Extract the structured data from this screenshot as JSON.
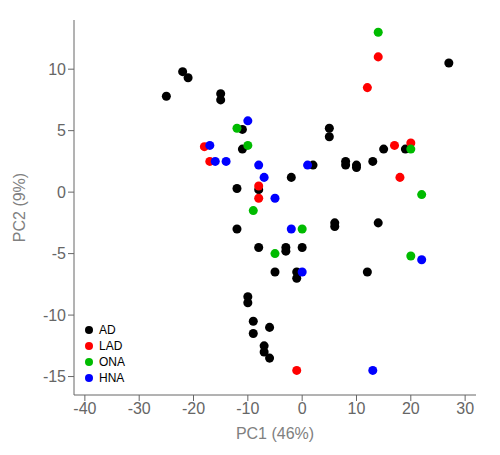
{
  "chart_data": {
    "type": "scatter",
    "xlabel": "PC1 (46%)",
    "ylabel": "PC2 (9%)",
    "xlim": [
      -42,
      32
    ],
    "ylim": [
      -16.5,
      14
    ],
    "xticks": [
      -40,
      -30,
      -20,
      -10,
      0,
      10,
      20,
      30
    ],
    "yticks": [
      -15,
      -10,
      -5,
      0,
      5,
      10
    ],
    "grid": false,
    "legend": "lower left",
    "series": [
      {
        "name": "AD",
        "color": "#000000",
        "values": [
          [
            -25,
            7.8
          ],
          [
            -22,
            9.8
          ],
          [
            -21,
            9.3
          ],
          [
            -15,
            8.0
          ],
          [
            -15,
            7.5
          ],
          [
            -12,
            0.3
          ],
          [
            -12,
            -3.0
          ],
          [
            -11,
            5.1
          ],
          [
            -11,
            3.5
          ],
          [
            -10,
            -8.5
          ],
          [
            -10,
            -9.0
          ],
          [
            -9,
            -10.5
          ],
          [
            -9,
            -11.5
          ],
          [
            -8,
            0.2
          ],
          [
            -8,
            -4.5
          ],
          [
            -7,
            -12.5
          ],
          [
            -7,
            -13.0
          ],
          [
            -6,
            -11.0
          ],
          [
            -6,
            -13.5
          ],
          [
            -5,
            -6.5
          ],
          [
            -3,
            -4.5
          ],
          [
            -3,
            -4.8
          ],
          [
            -2,
            1.2
          ],
          [
            -1,
            -6.5
          ],
          [
            -1,
            -7.0
          ],
          [
            0,
            -4.5
          ],
          [
            2,
            2.2
          ],
          [
            5,
            5.2
          ],
          [
            5,
            4.5
          ],
          [
            6,
            -2.5
          ],
          [
            6,
            -2.8
          ],
          [
            8,
            2.2
          ],
          [
            8,
            2.5
          ],
          [
            10,
            2.0
          ],
          [
            10,
            2.2
          ],
          [
            12,
            -6.5
          ],
          [
            13,
            2.5
          ],
          [
            14,
            -2.5
          ],
          [
            15,
            3.5
          ],
          [
            19,
            3.5
          ],
          [
            27,
            10.5
          ]
        ]
      },
      {
        "name": "LAD",
        "color": "#ff0000",
        "values": [
          [
            -18,
            3.7
          ],
          [
            -17,
            2.5
          ],
          [
            -8,
            0.5
          ],
          [
            -8,
            -0.5
          ],
          [
            -1,
            -14.5
          ],
          [
            12,
            8.5
          ],
          [
            14,
            11.0
          ],
          [
            17,
            3.8
          ],
          [
            18,
            1.2
          ],
          [
            20,
            4.0
          ]
        ]
      },
      {
        "name": "ONA",
        "color": "#00bb00",
        "values": [
          [
            -12,
            5.2
          ],
          [
            -10,
            3.8
          ],
          [
            -9,
            -1.5
          ],
          [
            -5,
            -5.0
          ],
          [
            0,
            -3.0
          ],
          [
            14,
            13.0
          ],
          [
            20,
            3.5
          ],
          [
            22,
            -0.2
          ],
          [
            20,
            -5.2
          ]
        ]
      },
      {
        "name": "HNA",
        "color": "#0000ff",
        "values": [
          [
            -17,
            3.8
          ],
          [
            -16,
            2.5
          ],
          [
            -14,
            2.5
          ],
          [
            -10,
            5.8
          ],
          [
            -8,
            2.2
          ],
          [
            -7,
            1.2
          ],
          [
            -5,
            -0.5
          ],
          [
            -2,
            -3.0
          ],
          [
            0,
            -6.5
          ],
          [
            1,
            2.2
          ],
          [
            13,
            -14.5
          ],
          [
            22,
            -5.5
          ]
        ]
      }
    ]
  }
}
